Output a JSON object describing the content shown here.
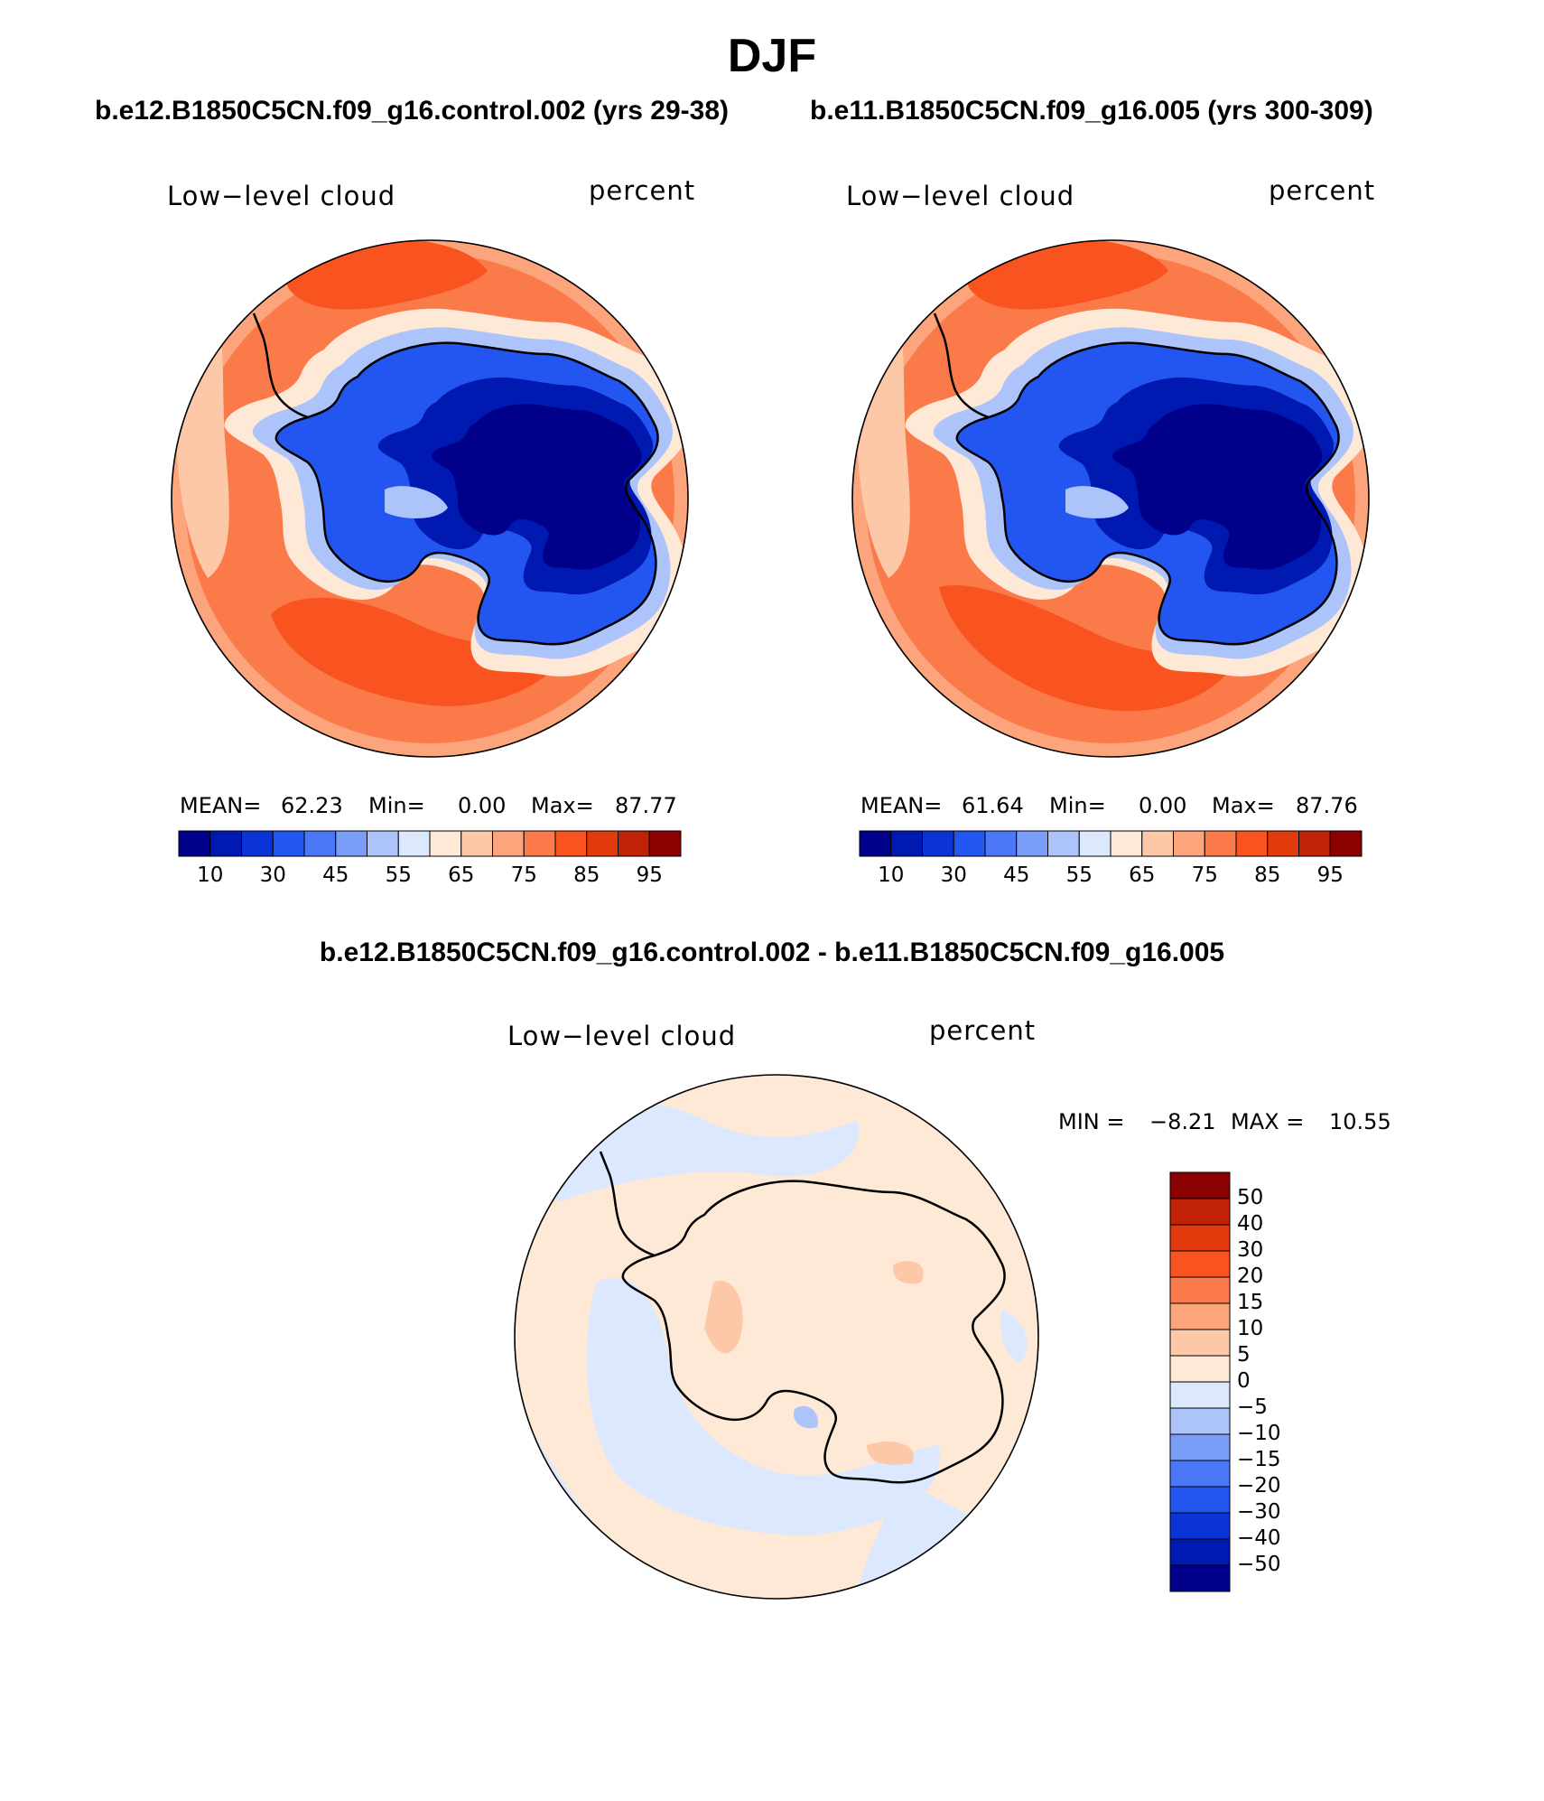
{
  "figure": {
    "title": "DJF",
    "panel_a_title": "b.e12.B1850C5CN.f09_g16.control.002 (yrs 29-38)",
    "panel_b_title": "b.e11.B1850C5CN.f09_g16.005 (yrs 300-309)",
    "diff_title": "b.e12.B1850C5CN.f09_g16.control.002 - b.e11.B1850C5CN.f09_g16.005"
  },
  "panels": [
    {
      "variable": "Low−level cloud",
      "units": "percent",
      "mean_label": "MEAN=",
      "mean": "62.23",
      "min_label": "Min=",
      "min": "0.00",
      "max_label": "Max=",
      "max": "87.77"
    },
    {
      "variable": "Low−level cloud",
      "units": "percent",
      "mean_label": "MEAN=",
      "mean": "61.64",
      "min_label": "Min=",
      "min": "0.00",
      "max_label": "Max=",
      "max": "87.76"
    }
  ],
  "diff_panel": {
    "variable": "Low−level cloud",
    "units": "percent",
    "min_label": "MIN =",
    "min": "−8.21",
    "max_label": "MAX =",
    "max": "10.55"
  },
  "colorbar_abs": {
    "colors": [
      "#00008b",
      "#0019b0",
      "#0a34d6",
      "#2356f0",
      "#4a78f6",
      "#7a9ef8",
      "#adc4fb",
      "#dbe8fd",
      "#fee8d6",
      "#fdc8a8",
      "#fca47c",
      "#fb7a4a",
      "#f9531f",
      "#e23a0c",
      "#bf2207",
      "#8b0000"
    ],
    "tick_labels": [
      "10",
      "30",
      "45",
      "55",
      "65",
      "75",
      "85",
      "95"
    ]
  },
  "colorbar_diff": {
    "colors": [
      "#8b0000",
      "#bf2207",
      "#e23a0c",
      "#f9531f",
      "#fb7a4a",
      "#fca47c",
      "#fdc8a8",
      "#fee8d6",
      "#dbe8fd",
      "#adc4fb",
      "#7a9ef8",
      "#4a78f6",
      "#2356f0",
      "#0a34d6",
      "#0019b0",
      "#00008b"
    ],
    "tick_labels": [
      "50",
      "40",
      "30",
      "20",
      "15",
      "10",
      "5",
      "0",
      "−5",
      "−10",
      "−15",
      "−20",
      "−30",
      "−40",
      "−50"
    ]
  }
}
